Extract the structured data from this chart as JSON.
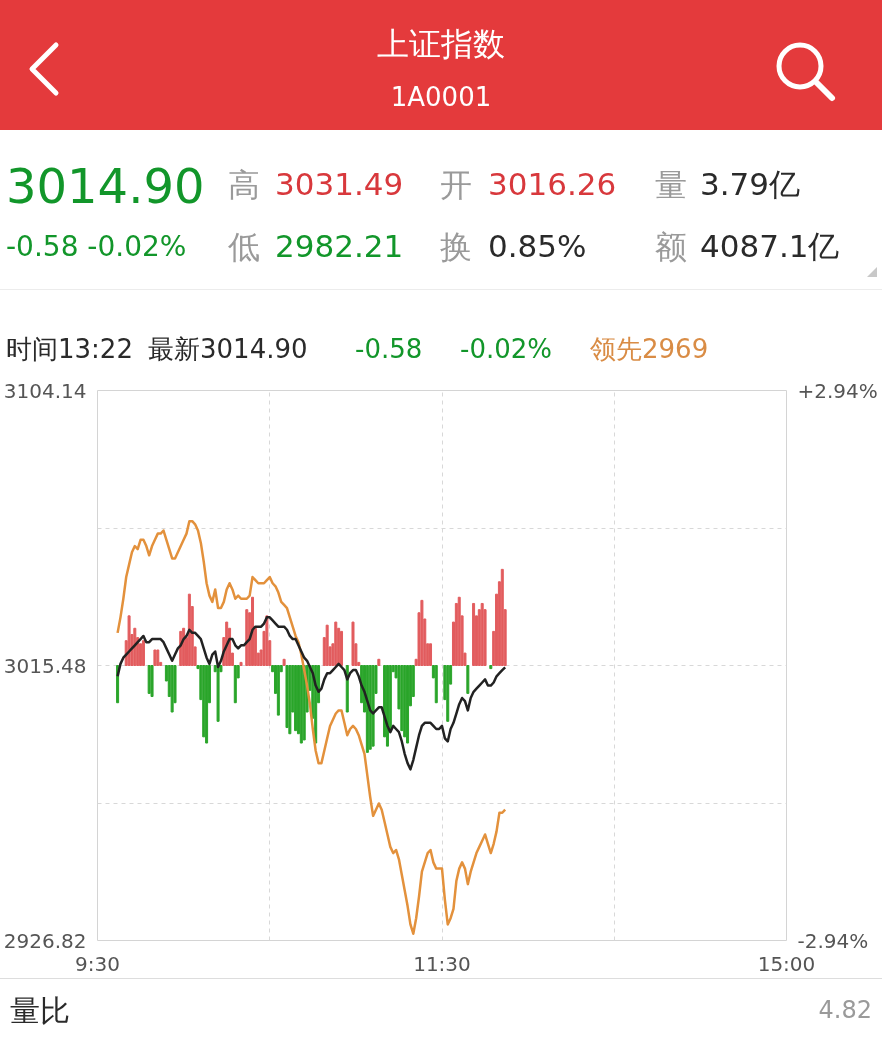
{
  "chart_data": {
    "type": "line",
    "title": "上证指数",
    "subtitle": "1A0001",
    "annotations": [
      "3014.90",
      "-0.58 -0.02%",
      "高",
      "3031.49",
      "开",
      "3016.26",
      "量",
      "3.79亿",
      "低",
      "2982.21",
      "换",
      "0.85%",
      "额",
      "4087.1亿",
      "时间13:22",
      "最新3014.90",
      "-0.58",
      "-0.02%",
      "领先2969",
      "量比",
      "4.82"
    ],
    "categories": [
      "9:30",
      null,
      null,
      null,
      null,
      null,
      null,
      null,
      null,
      null,
      null,
      null,
      null,
      null,
      null,
      null,
      null,
      null,
      null,
      null,
      null,
      null,
      null,
      null,
      null,
      null,
      null,
      null,
      null,
      null,
      null,
      null,
      null,
      null,
      null,
      null,
      null,
      null,
      null,
      null,
      null,
      null,
      null,
      null,
      null,
      null,
      null,
      null,
      null,
      null,
      null,
      null,
      null,
      null,
      null,
      null,
      null,
      null,
      null,
      null,
      null,
      null,
      null,
      null,
      null,
      null,
      null,
      null,
      null,
      null,
      null,
      null,
      null,
      null,
      null,
      null,
      null,
      null,
      null,
      null,
      null,
      null,
      null,
      null,
      null,
      null,
      null,
      null,
      null,
      null,
      null,
      null,
      null,
      null,
      null,
      null,
      null,
      null,
      null,
      null,
      null,
      null,
      null,
      null,
      null,
      null,
      null,
      null,
      null,
      null,
      null,
      null,
      null,
      null,
      null,
      null,
      null,
      null,
      null,
      null,
      "11:30",
      null,
      null,
      null,
      null,
      null,
      null,
      null,
      null,
      null,
      null,
      null,
      null,
      null,
      null,
      null,
      null,
      null,
      null,
      null,
      null,
      null,
      null,
      null,
      null,
      null,
      null,
      null,
      null,
      null,
      null,
      null,
      null,
      null,
      null,
      null,
      null,
      null,
      null,
      null,
      null,
      null,
      null,
      null,
      null,
      null,
      null,
      null,
      null,
      null,
      null,
      null,
      null,
      null,
      null,
      null,
      null,
      null,
      null,
      null,
      null,
      null,
      null,
      null,
      null,
      null,
      null,
      null,
      null,
      null,
      null,
      null,
      null,
      null,
      null,
      null,
      null,
      null,
      null,
      null,
      null,
      null,
      null,
      null,
      null,
      null,
      null,
      null,
      null,
      null,
      null,
      null,
      null,
      null,
      null,
      null,
      null,
      null,
      null,
      null,
      null,
      null,
      null,
      null,
      null,
      null,
      null,
      null,
      null,
      null,
      null,
      null,
      null,
      null,
      null,
      null,
      null,
      null,
      null,
      null,
      "15:00"
    ],
    "ylim": [
      2926.82,
      3104.14
    ],
    "yticks": [
      3104.14,
      {
        "value": 3059.81,
        "label": null
      },
      3015.48,
      {
        "value": 2971.15,
        "label": null
      },
      2926.82
    ],
    "y2lim": [
      -2.94,
      2.94
    ],
    "y2ticks": [
      {
        "value": 2.94,
        "label": "+2.94%"
      },
      {
        "value": -2.94,
        "label": "-2.94%"
      }
    ],
    "grid": true,
    "series": [
      {
        "type": "bar",
        "values": [
          null,
          null,
          null,
          null,
          null,
          null,
          null,
          -12,
          null,
          null,
          8,
          16,
          10,
          12,
          9,
          7,
          8,
          null,
          -9,
          -10,
          5,
          5,
          1,
          null,
          -5,
          -10,
          -15,
          -12,
          null,
          11,
          12,
          9,
          23,
          19,
          6,
          -1,
          -11,
          -23,
          -25,
          -12,
          null,
          -2,
          -18,
          -2,
          9,
          14,
          12,
          4,
          -12,
          -4,
          1,
          null,
          18,
          17,
          22,
          12,
          4,
          5,
          11,
          16,
          8,
          -2,
          -9,
          -16,
          -2,
          2,
          -20,
          -22,
          -15,
          -21,
          -22,
          -25,
          -24,
          -15,
          -8,
          -17,
          -25,
          -12,
          null,
          9,
          13,
          6,
          7,
          14,
          12,
          11,
          null,
          -15,
          null,
          14,
          7,
          1,
          -12,
          -15,
          -28,
          -27,
          -26,
          -9,
          2,
          null,
          -23,
          -26,
          -21,
          -2,
          -4,
          -14,
          -21,
          -23,
          -25,
          -13,
          -10,
          2,
          17,
          21,
          15,
          7,
          7,
          -4,
          -12,
          null,
          null,
          -11,
          -18,
          -6,
          14,
          20,
          22,
          16,
          4,
          -9,
          null,
          20,
          16,
          18,
          20,
          18,
          null,
          -1,
          11,
          23,
          27,
          31,
          18,
          null,
          null,
          null,
          null,
          null,
          null,
          null,
          null,
          null,
          null,
          null,
          null,
          null,
          null,
          null,
          null,
          null,
          null,
          null,
          null,
          null,
          null,
          null,
          null,
          null,
          null,
          null,
          null,
          null,
          null,
          null,
          null,
          null,
          null,
          null,
          null,
          null,
          null,
          null,
          null,
          null,
          null,
          null,
          null,
          null,
          null,
          null,
          null,
          null,
          null,
          null,
          null,
          null,
          null,
          null,
          null,
          null,
          null,
          null,
          null,
          null,
          null,
          null,
          null,
          null,
          null,
          null,
          null,
          null,
          null,
          null,
          null,
          null,
          null,
          null,
          null,
          null,
          null,
          null,
          null,
          null,
          null,
          null,
          null,
          null,
          null,
          null,
          null,
          null,
          null,
          null,
          null,
          null,
          null,
          null,
          null,
          null,
          null
        ],
        "base": [
          null,
          null,
          null,
          null,
          null,
          null,
          null,
          3015.48,
          null,
          null,
          3015.48,
          3015.48,
          3015.48,
          3015.48,
          3015.48,
          3015.48,
          3015.48,
          null,
          3015.48,
          3015.48,
          3015.48,
          3015.48,
          3015.48,
          null,
          3015.48,
          3015.48,
          3015.48,
          3015.48,
          null,
          3015.48,
          3015.48,
          3015.48,
          3015.48,
          3015.48,
          3015.48,
          3015.48,
          3015.48,
          3015.48,
          3015.48,
          3015.48,
          null,
          3015.48,
          3015.48,
          3015.48,
          3015.48,
          3015.48,
          3015.48,
          3015.48,
          3015.48,
          3015.48,
          3015.48,
          null,
          3015.48,
          3015.48,
          3015.48,
          3015.48,
          3015.48,
          3015.48,
          3015.48,
          3015.48,
          3015.48,
          3015.48,
          3015.48,
          3015.48,
          3015.48,
          3015.48,
          3015.48,
          3015.48,
          3015.48,
          3015.48,
          3015.48,
          3015.48,
          3015.48,
          3015.48,
          3015.48,
          3015.48,
          3015.48,
          3015.48,
          null,
          3015.48,
          3015.48,
          3015.48,
          3015.48,
          3015.48,
          3015.48,
          3015.48,
          null,
          3015.48,
          null,
          3015.48,
          3015.48,
          3015.48,
          3015.48,
          3015.48,
          3015.48,
          3015.48,
          3015.48,
          3015.48,
          3015.48,
          null,
          3015.48,
          3015.48,
          3015.48,
          3015.48,
          3015.48,
          3015.48,
          3015.48,
          3015.48,
          3015.48,
          3015.48,
          3015.48,
          3015.48,
          3015.48,
          3015.48,
          3015.48,
          3015.48,
          3015.48,
          3015.48,
          3015.48,
          null,
          null,
          3015.48,
          3015.48,
          3015.48,
          3015.48,
          3015.48,
          3015.48,
          3015.48,
          3015.48,
          3015.48,
          null,
          3015.48,
          3015.48,
          3015.48,
          3015.48,
          3015.48,
          null,
          3015.48,
          3015.48,
          3015.48,
          3015.48,
          3015.48,
          3015.48,
          null,
          null,
          null,
          null,
          null,
          null,
          null,
          null,
          null,
          null,
          null,
          null,
          null,
          null,
          null,
          null,
          null,
          null,
          null,
          null,
          null,
          null,
          null,
          null,
          null,
          null,
          null,
          null,
          null,
          null,
          null,
          null,
          null,
          null,
          null,
          null,
          null,
          null,
          null,
          null,
          null,
          null,
          null,
          null,
          null,
          null,
          null,
          null,
          null,
          null,
          null,
          null,
          null,
          null,
          null,
          null,
          null,
          null,
          null,
          null,
          null,
          null,
          null,
          null,
          null,
          null,
          null,
          null,
          null,
          null,
          null,
          null,
          null,
          null,
          null,
          null,
          null,
          null,
          null,
          null,
          null,
          null,
          null,
          null,
          null,
          null,
          null,
          null,
          null,
          null,
          null,
          null,
          null,
          null,
          null,
          null,
          null,
          null
        ],
        "colors": [
          null,
          null,
          null,
          null,
          null,
          null,
          null,
          "#2aa52a",
          null,
          null,
          "#e25c5e",
          "#e25c5e",
          "#e25c5e",
          "#e25c5e",
          "#e25c5e",
          "#e25c5e",
          "#e25c5e",
          null,
          "#2aa52a",
          "#2aa52a",
          "#e25c5e",
          "#e25c5e",
          "#e25c5e",
          null,
          "#2aa52a",
          "#2aa52a",
          "#2aa52a",
          "#2aa52a",
          null,
          "#e25c5e",
          "#e25c5e",
          "#e25c5e",
          "#e25c5e",
          "#e25c5e",
          "#e25c5e",
          "#2aa52a",
          "#2aa52a",
          "#2aa52a",
          "#2aa52a",
          "#2aa52a",
          null,
          "#2aa52a",
          "#2aa52a",
          "#2aa52a",
          "#e25c5e",
          "#e25c5e",
          "#e25c5e",
          "#e25c5e",
          "#2aa52a",
          "#2aa52a",
          "#e25c5e",
          null,
          "#e25c5e",
          "#e25c5e",
          "#e25c5e",
          "#e25c5e",
          "#e25c5e",
          "#e25c5e",
          "#e25c5e",
          "#e25c5e",
          "#e25c5e",
          "#2aa52a",
          "#2aa52a",
          "#2aa52a",
          "#2aa52a",
          "#e25c5e",
          "#2aa52a",
          "#2aa52a",
          "#2aa52a",
          "#2aa52a",
          "#2aa52a",
          "#2aa52a",
          "#2aa52a",
          "#2aa52a",
          "#2aa52a",
          "#2aa52a",
          "#2aa52a",
          "#2aa52a",
          null,
          "#e25c5e",
          "#e25c5e",
          "#e25c5e",
          "#e25c5e",
          "#e25c5e",
          "#e25c5e",
          "#e25c5e",
          null,
          "#2aa52a",
          null,
          "#e25c5e",
          "#e25c5e",
          "#e25c5e",
          "#2aa52a",
          "#2aa52a",
          "#2aa52a",
          "#2aa52a",
          "#2aa52a",
          "#2aa52a",
          "#e25c5e",
          null,
          "#2aa52a",
          "#2aa52a",
          "#2aa52a",
          "#2aa52a",
          "#2aa52a",
          "#2aa52a",
          "#2aa52a",
          "#2aa52a",
          "#2aa52a",
          "#2aa52a",
          "#2aa52a",
          "#e25c5e",
          "#e25c5e",
          "#e25c5e",
          "#e25c5e",
          "#e25c5e",
          "#e25c5e",
          "#2aa52a",
          "#2aa52a",
          null,
          null,
          "#2aa52a",
          "#2aa52a",
          "#2aa52a",
          "#e25c5e",
          "#e25c5e",
          "#e25c5e",
          "#e25c5e",
          "#e25c5e",
          "#2aa52a",
          null,
          "#e25c5e",
          "#e25c5e",
          "#e25c5e",
          "#e25c5e",
          "#e25c5e",
          null,
          "#2aa52a",
          "#e25c5e",
          "#e25c5e",
          "#e25c5e",
          "#e25c5e",
          "#e25c5e",
          null,
          null,
          null,
          null,
          null,
          null,
          null,
          null,
          null,
          null,
          null,
          null,
          null,
          null,
          null,
          null,
          null,
          null,
          null,
          null,
          null,
          null,
          null,
          null,
          null,
          null,
          null,
          null,
          null,
          null,
          null,
          null,
          null,
          null,
          null,
          null,
          null,
          null,
          null,
          null,
          null,
          null,
          null,
          null,
          null,
          null,
          null,
          null,
          null,
          null,
          null,
          null,
          null,
          null,
          null,
          null,
          null,
          null,
          null,
          null,
          null,
          null,
          null,
          null,
          null,
          null,
          null,
          null,
          null,
          null,
          null,
          null,
          null,
          null,
          null,
          null,
          null,
          null,
          null,
          null,
          null,
          null,
          null,
          null,
          null,
          null,
          null,
          null,
          null,
          null,
          null,
          null,
          null,
          null,
          null,
          null,
          null,
          null
        ]
      },
      {
        "color": "#e3913c",
        "values": [
          null,
          null,
          null,
          null,
          null,
          null,
          null,
          3026,
          3031,
          3037,
          3044,
          3048,
          3052,
          3054,
          3053,
          3056,
          3056,
          3054,
          3051,
          3054,
          3056,
          3058,
          3058,
          3059,
          3056,
          3053,
          3050,
          3050,
          3052,
          3054,
          3056,
          3058,
          3062,
          3062,
          3061,
          3059,
          3055,
          3049,
          3042,
          3038,
          3036,
          3040,
          3034,
          3034,
          3036,
          3040,
          3042,
          3040,
          3037,
          3038,
          3037,
          3037,
          3037,
          3038,
          3044,
          3043,
          3042,
          3042,
          3042,
          3043,
          3044,
          3042,
          3041,
          3039,
          3036,
          3035,
          3034,
          3031,
          3028,
          3025,
          3023,
          3019,
          3014,
          3009,
          3003,
          2995,
          2988,
          2984,
          2984,
          2988,
          2992,
          2996,
          2998,
          3000,
          3001,
          3001,
          2997,
          2993,
          2995,
          2996,
          2995,
          2993,
          2990,
          2987,
          2980,
          2973,
          2967,
          2969,
          2971,
          2969,
          2965,
          2961,
          2957,
          2955,
          2956,
          2953,
          2948,
          2943,
          2938,
          2932,
          2929,
          2934,
          2941,
          2949,
          2952,
          2955,
          2956,
          2952,
          2950,
          2950,
          2950,
          2940,
          2932,
          2934,
          2937,
          2946,
          2950,
          2952,
          2950,
          2945,
          2949,
          2952,
          2955,
          2957,
          2959,
          2961,
          2958,
          2955,
          2958,
          2962,
          2968,
          2968,
          2969,
          null,
          null,
          null,
          null,
          null,
          null,
          null,
          null,
          null,
          null,
          null,
          null,
          null,
          null,
          null,
          null,
          null,
          null,
          null,
          null,
          null,
          null,
          null,
          null,
          null,
          null,
          null,
          null,
          null,
          null,
          null,
          null,
          null,
          null,
          null,
          null,
          null,
          null,
          null,
          null,
          null,
          null,
          null,
          null,
          null,
          null,
          null,
          null,
          null,
          null,
          null,
          null,
          null,
          null,
          null,
          null,
          null,
          null,
          null,
          null,
          null,
          null,
          null,
          null,
          null,
          null,
          null,
          null,
          null,
          null,
          null,
          null,
          null,
          null,
          null,
          null,
          null,
          null,
          null,
          null,
          null,
          null,
          null,
          null,
          null,
          null,
          null,
          null,
          null,
          null,
          null,
          null,
          null,
          null,
          null,
          null,
          null,
          null
        ]
      },
      {
        "color": "#222222",
        "values": [
          null,
          null,
          null,
          null,
          null,
          null,
          null,
          3012,
          3016,
          3018,
          3019,
          3020,
          3021,
          3022,
          3023,
          3024,
          3025,
          3023,
          3023,
          3024,
          3024,
          3024,
          3024,
          3023,
          3021,
          3019,
          3017,
          3019,
          3021,
          3022,
          3024,
          3025,
          3027,
          3026,
          3026,
          3025,
          3024,
          3021,
          3018,
          3016,
          3019,
          3020,
          3015,
          3017,
          3020,
          3022,
          3024,
          3024,
          3022,
          3021,
          3022,
          3022,
          3023,
          3024,
          3027,
          3028,
          3028,
          3028,
          3029,
          3031,
          3031,
          3030,
          3029,
          3028,
          3028,
          3028,
          3027,
          3025,
          3024,
          3024,
          3022,
          3020,
          3018,
          3017,
          3015,
          3013,
          3009,
          3007,
          3008,
          3011,
          3013,
          3013,
          3014,
          3015,
          3016,
          3015,
          3014,
          3011,
          3013,
          3014,
          3014,
          3012,
          3009,
          3007,
          3004,
          3001,
          3000,
          3001,
          3002,
          3002,
          2999,
          2996,
          2994,
          2996,
          2995,
          2994,
          2991,
          2987,
          2984,
          2982,
          2985,
          2989,
          2993,
          2996,
          2997,
          2997,
          2997,
          2996,
          2995,
          2995,
          2996,
          2992,
          2991,
          2995,
          2997,
          3000,
          3003,
          3005,
          3004,
          3001,
          3005,
          3007,
          3008,
          3009,
          3010,
          3011,
          3009,
          3009,
          3010,
          3012,
          3013,
          3014,
          3014.9,
          null,
          null,
          null,
          null,
          null,
          null,
          null,
          null,
          null,
          null,
          null,
          null,
          null,
          null,
          null,
          null,
          null,
          null,
          null,
          null,
          null,
          null,
          null,
          null,
          null,
          null,
          null,
          null,
          null,
          null,
          null,
          null,
          null,
          null,
          null,
          null,
          null,
          null,
          null,
          null,
          null,
          null,
          null,
          null,
          null,
          null,
          null,
          null,
          null,
          null,
          null,
          null,
          null,
          null,
          null,
          null,
          null,
          null,
          null,
          null,
          null,
          null,
          null,
          null,
          null,
          null,
          null,
          null,
          null,
          null,
          null,
          null,
          null,
          null,
          null,
          null,
          null,
          null,
          null,
          null,
          null,
          null,
          null,
          null,
          null,
          null,
          null,
          null,
          null,
          null,
          null,
          null,
          null,
          null,
          null,
          null,
          null,
          null
        ]
      }
    ]
  }
}
